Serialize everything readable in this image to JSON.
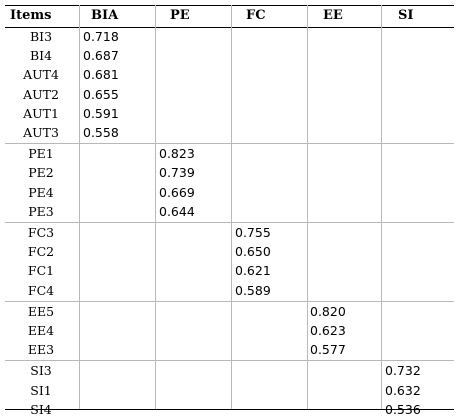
{
  "headers": [
    "Items",
    "BIA",
    "PE",
    "FC",
    "EE",
    "SI"
  ],
  "rows": [
    {
      "item": "BI3",
      "col": 1,
      "value": "0.718"
    },
    {
      "item": "BI4",
      "col": 1,
      "value": "0.687"
    },
    {
      "item": "AUT4",
      "col": 1,
      "value": "0.681"
    },
    {
      "item": "AUT2",
      "col": 1,
      "value": "0.655"
    },
    {
      "item": "AUT1",
      "col": 1,
      "value": "0.591"
    },
    {
      "item": "AUT3",
      "col": 1,
      "value": "0.558"
    },
    {
      "item": "PE1",
      "col": 2,
      "value": "0.823"
    },
    {
      "item": "PE2",
      "col": 2,
      "value": "0.739"
    },
    {
      "item": "PE4",
      "col": 2,
      "value": "0.669"
    },
    {
      "item": "PE3",
      "col": 2,
      "value": "0.644"
    },
    {
      "item": "FC3",
      "col": 3,
      "value": "0.755"
    },
    {
      "item": "FC2",
      "col": 3,
      "value": "0.650"
    },
    {
      "item": "FC1",
      "col": 3,
      "value": "0.621"
    },
    {
      "item": "FC4",
      "col": 3,
      "value": "0.589"
    },
    {
      "item": "EE5",
      "col": 4,
      "value": "0.820"
    },
    {
      "item": "EE4",
      "col": 4,
      "value": "0.623"
    },
    {
      "item": "EE3",
      "col": 4,
      "value": "0.577"
    },
    {
      "item": "SI3",
      "col": 5,
      "value": "0.732"
    },
    {
      "item": "SI1",
      "col": 5,
      "value": "0.632"
    },
    {
      "item": "SI4",
      "col": 5,
      "value": "0.536"
    }
  ]
}
